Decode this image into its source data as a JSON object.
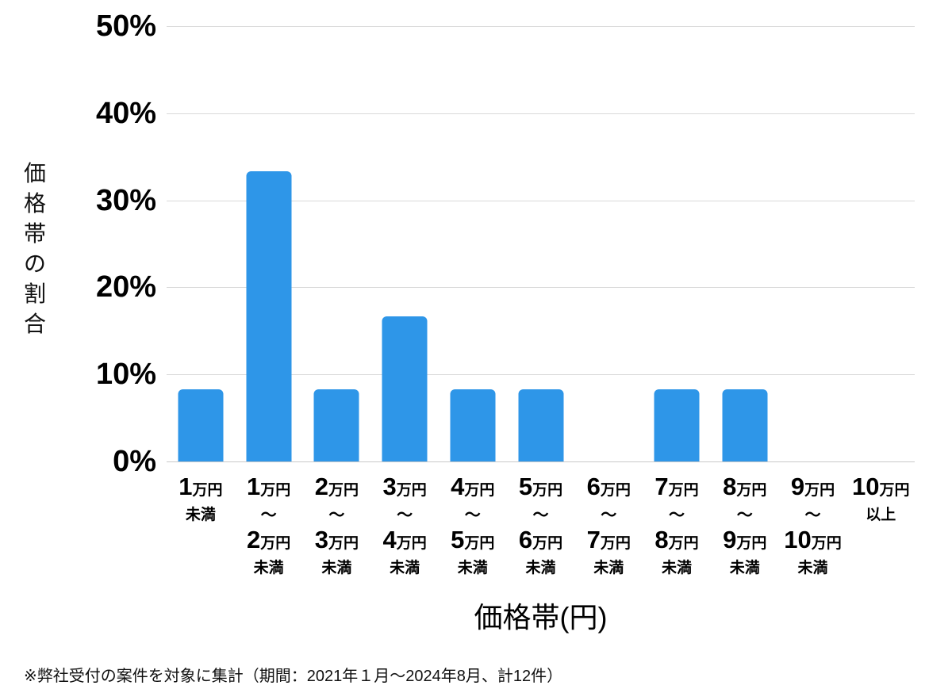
{
  "colors": {
    "bar": "#2e96e8",
    "grid": "#d9d9d9",
    "baseline": "#c9c9c9",
    "text": "#000000"
  },
  "chart_data": {
    "type": "bar",
    "title": "",
    "xlabel": "価格帯(円)",
    "ylabel": "価格帯の割合",
    "ylim": [
      0,
      50
    ],
    "yticks": [
      "0%",
      "10%",
      "20%",
      "30%",
      "40%",
      "50%"
    ],
    "grid": true,
    "legend": false,
    "categories": [
      "1万円未満",
      "1万円〜2万円未満",
      "2万円〜3万円未満",
      "3万円〜4万円未満",
      "4万円〜5万円未満",
      "5万円〜6万円未満",
      "6万円〜7万円未満",
      "7万円〜8万円未満",
      "8万円〜9万円未満",
      "9万円〜10万円未満",
      "10万円以上"
    ],
    "tick_label_parts": [
      {
        "top_num": "1",
        "top_unit": "万円",
        "tilde": "",
        "bottom_num": "",
        "bottom_unit": "",
        "suffix": "未満"
      },
      {
        "top_num": "1",
        "top_unit": "万円",
        "tilde": "〜",
        "bottom_num": "2",
        "bottom_unit": "万円",
        "suffix": "未満"
      },
      {
        "top_num": "2",
        "top_unit": "万円",
        "tilde": "〜",
        "bottom_num": "3",
        "bottom_unit": "万円",
        "suffix": "未満"
      },
      {
        "top_num": "3",
        "top_unit": "万円",
        "tilde": "〜",
        "bottom_num": "4",
        "bottom_unit": "万円",
        "suffix": "未満"
      },
      {
        "top_num": "4",
        "top_unit": "万円",
        "tilde": "〜",
        "bottom_num": "5",
        "bottom_unit": "万円",
        "suffix": "未満"
      },
      {
        "top_num": "5",
        "top_unit": "万円",
        "tilde": "〜",
        "bottom_num": "6",
        "bottom_unit": "万円",
        "suffix": "未満"
      },
      {
        "top_num": "6",
        "top_unit": "万円",
        "tilde": "〜",
        "bottom_num": "7",
        "bottom_unit": "万円",
        "suffix": "未満"
      },
      {
        "top_num": "7",
        "top_unit": "万円",
        "tilde": "〜",
        "bottom_num": "8",
        "bottom_unit": "万円",
        "suffix": "未満"
      },
      {
        "top_num": "8",
        "top_unit": "万円",
        "tilde": "〜",
        "bottom_num": "9",
        "bottom_unit": "万円",
        "suffix": "未満"
      },
      {
        "top_num": "9",
        "top_unit": "万円",
        "tilde": "〜",
        "bottom_num": "10",
        "bottom_unit": "万円",
        "suffix": "未満"
      },
      {
        "top_num": "10",
        "top_unit": "万円",
        "tilde": "",
        "bottom_num": "",
        "bottom_unit": "",
        "suffix": "以上"
      }
    ],
    "values": [
      8.3,
      33.3,
      8.3,
      16.7,
      8.3,
      8.3,
      0,
      8.3,
      8.3,
      0,
      0
    ]
  },
  "footnote": "※弊社受付の案件を対象に集計（期間：2021年１月～2024年8月、計12件）"
}
